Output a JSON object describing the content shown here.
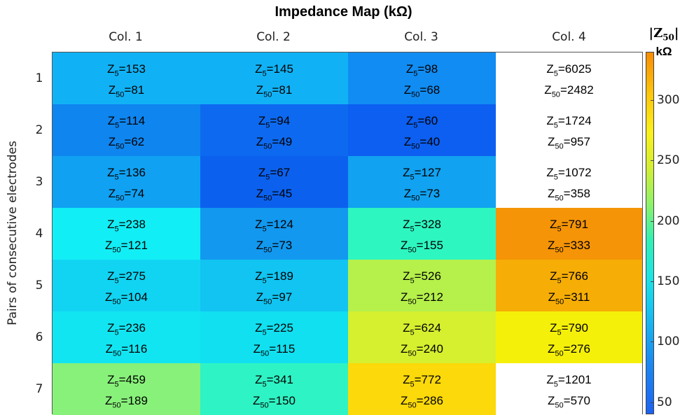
{
  "chart_data": {
    "type": "heatmap",
    "title": "Impedance Map (kΩ)",
    "columns": [
      "Col. 1",
      "Col. 2",
      "Col. 3",
      "Col. 4"
    ],
    "rows": [
      "1",
      "2",
      "3",
      "4",
      "5",
      "6",
      "7"
    ],
    "ylabel": "Pairs of consecutive electrodes",
    "colorbar": {
      "label_symbol": "|Z",
      "label_sub": "50",
      "label_close": "|",
      "label_unit": "kΩ",
      "range": [
        40,
        340
      ],
      "ticks": [
        "300",
        "250",
        "200",
        "150",
        "100",
        "50"
      ],
      "tick_values": [
        300,
        250,
        200,
        150,
        100,
        50
      ]
    },
    "line_prefix_sym": "Z",
    "sub_5": "5",
    "sub_50": "50",
    "cells": [
      [
        {
          "z5": "153",
          "z50": "81"
        },
        {
          "z5": "145",
          "z50": "81"
        },
        {
          "z5": "98",
          "z50": "68"
        },
        {
          "z5": "6025",
          "z50": "2482"
        }
      ],
      [
        {
          "z5": "114",
          "z50": "62"
        },
        {
          "z5": "94",
          "z50": "49"
        },
        {
          "z5": "60",
          "z50": "40"
        },
        {
          "z5": "1724",
          "z50": "957"
        }
      ],
      [
        {
          "z5": "136",
          "z50": "74"
        },
        {
          "z5": "67",
          "z50": "45"
        },
        {
          "z5": "127",
          "z50": "73"
        },
        {
          "z5": "1072",
          "z50": "358"
        }
      ],
      [
        {
          "z5": "238",
          "z50": "121"
        },
        {
          "z5": "124",
          "z50": "73"
        },
        {
          "z5": "328",
          "z50": "155"
        },
        {
          "z5": "791",
          "z50": "333"
        }
      ],
      [
        {
          "z5": "275",
          "z50": "104"
        },
        {
          "z5": "189",
          "z50": "97"
        },
        {
          "z5": "526",
          "z50": "212"
        },
        {
          "z5": "766",
          "z50": "311"
        }
      ],
      [
        {
          "z5": "236",
          "z50": "116"
        },
        {
          "z5": "225",
          "z50": "115"
        },
        {
          "z5": "624",
          "z50": "240"
        },
        {
          "z5": "790",
          "z50": "276"
        }
      ],
      [
        {
          "z5": "459",
          "z50": "189"
        },
        {
          "z5": "341",
          "z50": "150"
        },
        {
          "z5": "772",
          "z50": "286"
        },
        {
          "z5": "1201",
          "z50": "570"
        }
      ]
    ],
    "colors": [
      [
        "#11b2f5",
        "#11b2f5",
        "#118cf2",
        "#ffffff"
      ],
      [
        "#0f85ef",
        "#0d6af0",
        "#0c5ff0",
        "#ffffff"
      ],
      [
        "#10a1f2",
        "#0b61ee",
        "#11a2f1",
        "#ffffff"
      ],
      [
        "#12eef5",
        "#1298ef",
        "#2ef6c0",
        "#f59407"
      ],
      [
        "#11d4f2",
        "#11c4f1",
        "#b5f04b",
        "#f6ae07"
      ],
      [
        "#12e5f2",
        "#11e0f0",
        "#d6ef2f",
        "#f5f00a"
      ],
      [
        "#88f17a",
        "#2ef3c4",
        "#fbd90a",
        "#ffffff"
      ]
    ]
  }
}
